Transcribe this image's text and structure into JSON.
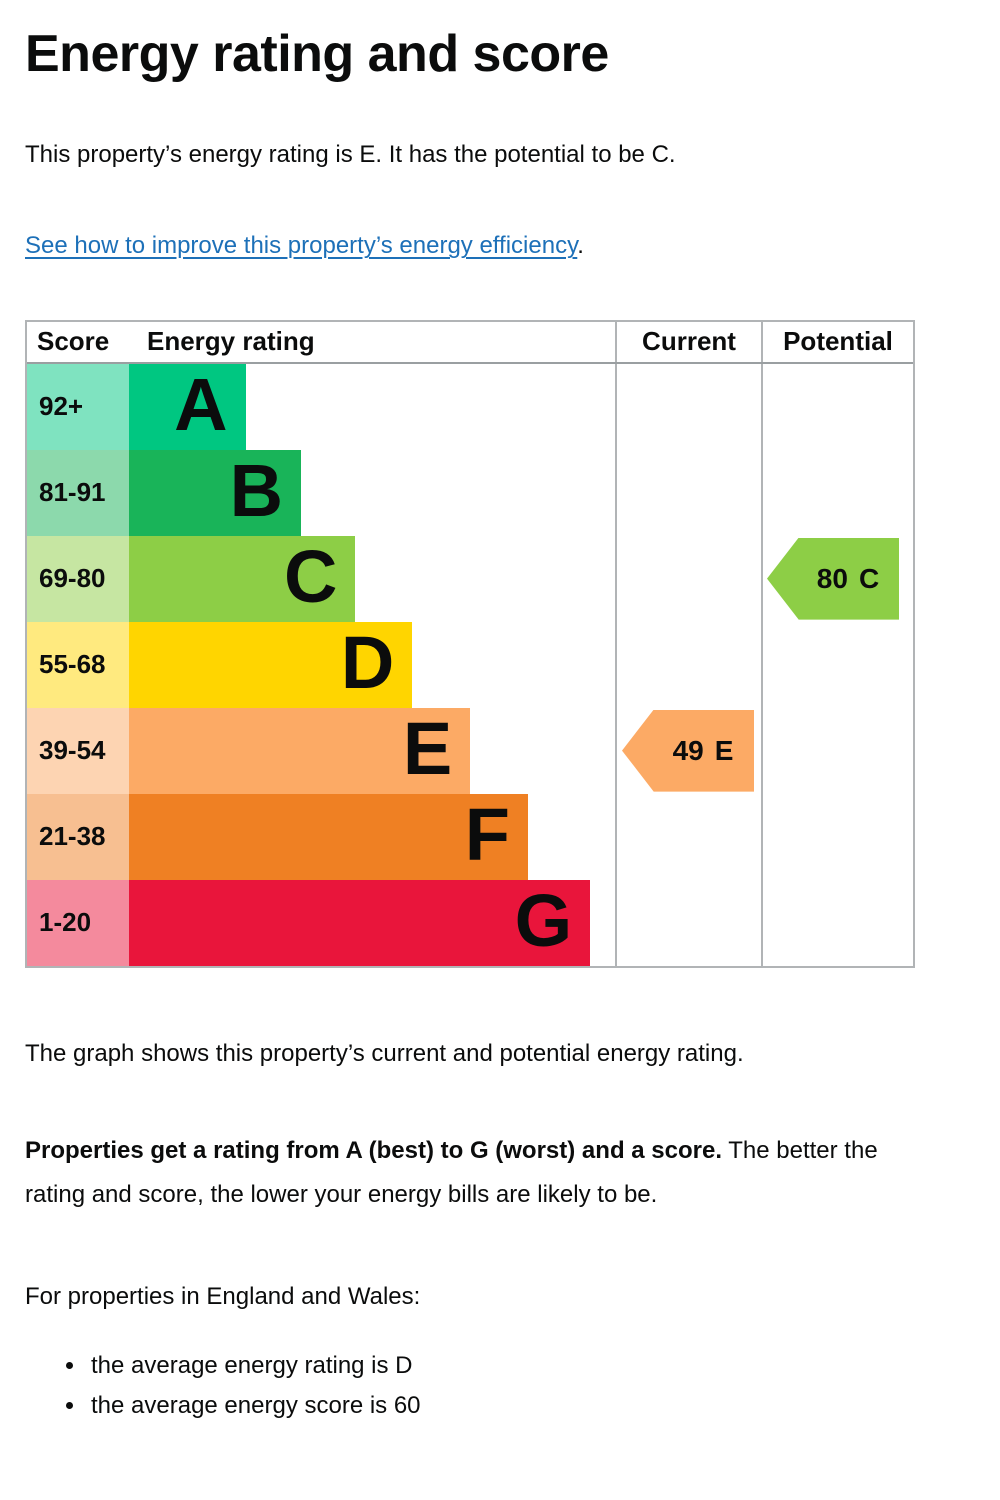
{
  "page": {
    "title": "Energy rating and score",
    "intro": "This property’s energy rating is E. It has the potential to be C.",
    "link_text": "See how to improve this property’s energy efficiency",
    "link_suffix": ".",
    "graph_caption": "The graph shows this property’s current and potential energy rating.",
    "explainer_bold": "Properties get a rating from A (best) to G (worst) and a score.",
    "explainer_rest": " The better the rating and score, the lower your energy bills are likely to be.",
    "england_wales": "For properties in England and Wales:",
    "bullets": [
      "the average energy rating is D",
      "the average energy score is 60"
    ]
  },
  "epc": {
    "headers": {
      "score": "Score",
      "rating": "Energy rating",
      "current": "Current",
      "potential": "Potential"
    },
    "bands": [
      {
        "score": "92+",
        "letter": "A",
        "color": "#00c781",
        "tint": "#7fe3c0",
        "width_pct": 24.0
      },
      {
        "score": "81-91",
        "letter": "B",
        "color": "#19b459",
        "tint": "#8cd9ac",
        "width_pct": 35.4
      },
      {
        "score": "69-80",
        "letter": "C",
        "color": "#8dce46",
        "tint": "#c6e6a2",
        "width_pct": 46.6
      },
      {
        "score": "55-68",
        "letter": "D",
        "color": "#ffd500",
        "tint": "#ffea7f",
        "width_pct": 58.3
      },
      {
        "score": "39-54",
        "letter": "E",
        "color": "#fcaa65",
        "tint": "#fdd4b2",
        "width_pct": 70.2
      },
      {
        "score": "21-38",
        "letter": "F",
        "color": "#ef8023",
        "tint": "#f7bf91",
        "width_pct": 82.1
      },
      {
        "score": "1-20",
        "letter": "G",
        "color": "#e9153b",
        "tint": "#f48a9d",
        "width_pct": 94.9
      }
    ],
    "current": {
      "value": "49",
      "letter": "E",
      "color": "#fcaa65",
      "band_index": 4
    },
    "potential": {
      "value": "80",
      "letter": "C",
      "color": "#8dce46",
      "band_index": 2
    }
  },
  "colors": {
    "text": "#0b0c0c",
    "link": "#1d70b8",
    "table_border": "#b1b4b6"
  },
  "chart_data": {
    "type": "table",
    "title": "EPC energy efficiency rating chart",
    "categories": [
      "A",
      "B",
      "C",
      "D",
      "E",
      "F",
      "G"
    ],
    "score_ranges": [
      "92+",
      "81-91",
      "69-80",
      "55-68",
      "39-54",
      "21-38",
      "1-20"
    ],
    "bar_lengths_pct": [
      24.0,
      35.4,
      46.6,
      58.3,
      70.2,
      82.1,
      94.9
    ],
    "current": {
      "score": 49,
      "rating": "E"
    },
    "potential": {
      "score": 80,
      "rating": "C"
    },
    "columns": [
      "Score",
      "Energy rating",
      "Current",
      "Potential"
    ]
  }
}
